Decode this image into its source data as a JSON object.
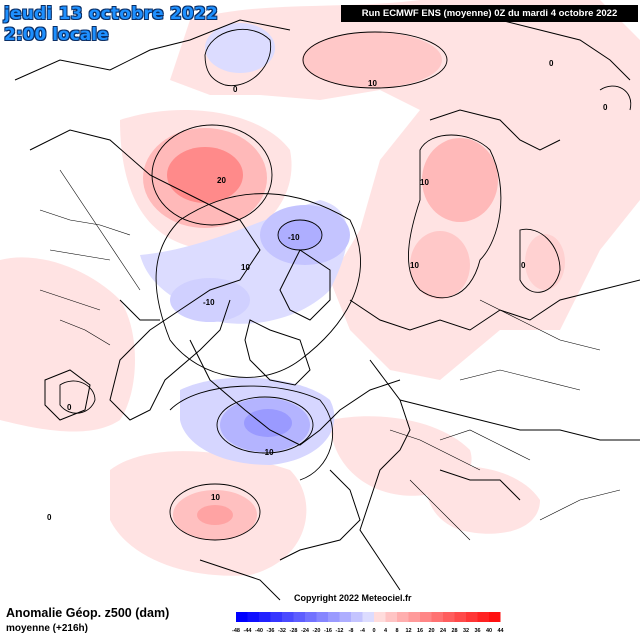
{
  "header": {
    "date": "jeudi 13 octobre 2022",
    "time": "2:00 locale",
    "run": "Run ECMWF ENS (moyenne) 0Z du mardi 4 octobre 2022"
  },
  "footer": {
    "variable": "Anomalie Géop. z500 (dam)",
    "subtitle": "moyenne    (+216h)",
    "copyright": "Copyright 2022 Meteociel.fr"
  },
  "legend": {
    "ticks": [
      "-48",
      "-44",
      "-40",
      "-36",
      "-32",
      "-28",
      "-24",
      "-20",
      "-16",
      "-12",
      "-8",
      "-4",
      "0",
      "4",
      "8",
      "12",
      "16",
      "20",
      "24",
      "28",
      "32",
      "36",
      "40",
      "44"
    ],
    "colors": [
      "#0000ff",
      "#1010ff",
      "#2222ff",
      "#3636ff",
      "#4a4aff",
      "#5e5eff",
      "#7272ff",
      "#8686ff",
      "#9a9aff",
      "#aeaeff",
      "#c4c4ff",
      "#dcdcff",
      "#ffdcdc",
      "#ffc4c4",
      "#ffaeae",
      "#ff9a9a",
      "#ff8686",
      "#ff7272",
      "#ff5e5e",
      "#ff4a4a",
      "#ff3636",
      "#ff2222",
      "#ff1010"
    ]
  },
  "contours": [
    {
      "value": "0",
      "label": "0"
    },
    {
      "value": "10",
      "label": "10"
    },
    {
      "value": "20",
      "label": "20"
    },
    {
      "value": "-10",
      "label": "-10"
    }
  ],
  "colors": {
    "title": "#1e90ff",
    "title_outline": "#0b2f66",
    "run_bg": "#000000"
  }
}
